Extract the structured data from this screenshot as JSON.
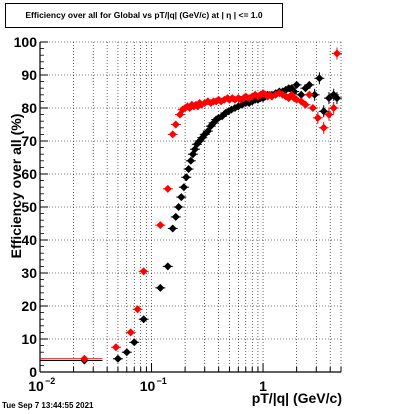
{
  "timestamp": "Tue Sep  7 13:44:55 2021",
  "chart_data": {
    "type": "scatter",
    "title": "Efficiency over all for Global vs pT/|q| (GeV/c) at |  η  | <= 1.0",
    "xlabel": "pT/|q| (GeV/c)",
    "ylabel": "Efficiency over all (%)",
    "xscale": "log",
    "xlim": [
      0.01,
      5.0
    ],
    "ylim": [
      0,
      100
    ],
    "grid": true,
    "x_ticks": [
      {
        "v": 0.01,
        "label": "10",
        "exp": "−2"
      },
      {
        "v": 0.1,
        "label": "10",
        "exp": "−1"
      },
      {
        "v": 1,
        "label": "1",
        "exp": ""
      }
    ],
    "y_ticks": [
      0,
      10,
      20,
      30,
      40,
      50,
      60,
      70,
      80,
      90,
      100
    ],
    "series": [
      {
        "color": "#000000",
        "points": [
          [
            0.025,
            3.5
          ],
          [
            0.05,
            4
          ],
          [
            0.06,
            6
          ],
          [
            0.07,
            9
          ],
          [
            0.085,
            16
          ],
          [
            0.12,
            25.5
          ],
          [
            0.14,
            32
          ],
          [
            0.155,
            43.5
          ],
          [
            0.165,
            47
          ],
          [
            0.175,
            50
          ],
          [
            0.185,
            53
          ],
          [
            0.195,
            56
          ],
          [
            0.205,
            59
          ],
          [
            0.215,
            61.5
          ],
          [
            0.225,
            64
          ],
          [
            0.235,
            66
          ],
          [
            0.245,
            67.5
          ],
          [
            0.255,
            69
          ],
          [
            0.27,
            70
          ],
          [
            0.285,
            71
          ],
          [
            0.3,
            72
          ],
          [
            0.32,
            73
          ],
          [
            0.34,
            74.5
          ],
          [
            0.36,
            75.5
          ],
          [
            0.38,
            76.5
          ],
          [
            0.4,
            77
          ],
          [
            0.43,
            77.5
          ],
          [
            0.46,
            78.5
          ],
          [
            0.49,
            79
          ],
          [
            0.52,
            79.5
          ],
          [
            0.56,
            80
          ],
          [
            0.6,
            80.5
          ],
          [
            0.65,
            81
          ],
          [
            0.7,
            81.5
          ],
          [
            0.75,
            81.5
          ],
          [
            0.8,
            82
          ],
          [
            0.85,
            82.5
          ],
          [
            0.9,
            82.5
          ],
          [
            0.95,
            83
          ],
          [
            1.0,
            83
          ],
          [
            1.05,
            83.5
          ],
          [
            1.1,
            84
          ],
          [
            1.2,
            84
          ],
          [
            1.3,
            84.5
          ],
          [
            1.4,
            85
          ],
          [
            1.5,
            85
          ],
          [
            1.6,
            85.5
          ],
          [
            1.7,
            86
          ],
          [
            1.8,
            86
          ],
          [
            1.9,
            85
          ],
          [
            2.0,
            87
          ],
          [
            2.2,
            84
          ],
          [
            2.4,
            86
          ],
          [
            2.6,
            87
          ],
          [
            2.9,
            84
          ],
          [
            3.2,
            89
          ],
          [
            3.5,
            79
          ],
          [
            3.9,
            83
          ],
          [
            4.3,
            84
          ],
          [
            4.6,
            83
          ]
        ]
      },
      {
        "color": "#ff0000",
        "points": [
          [
            0.025,
            4
          ],
          [
            0.048,
            7.5
          ],
          [
            0.065,
            12
          ],
          [
            0.075,
            19
          ],
          [
            0.085,
            30.5
          ],
          [
            0.12,
            44.5
          ],
          [
            0.14,
            55.5
          ],
          [
            0.155,
            72
          ],
          [
            0.165,
            75
          ],
          [
            0.18,
            78
          ],
          [
            0.19,
            79.5
          ],
          [
            0.2,
            80
          ],
          [
            0.21,
            80.5
          ],
          [
            0.22,
            80
          ],
          [
            0.23,
            81
          ],
          [
            0.24,
            80.5
          ],
          [
            0.25,
            81
          ],
          [
            0.26,
            80.5
          ],
          [
            0.27,
            81.5
          ],
          [
            0.28,
            81
          ],
          [
            0.3,
            81.5
          ],
          [
            0.32,
            82
          ],
          [
            0.34,
            81.5
          ],
          [
            0.36,
            82
          ],
          [
            0.38,
            82
          ],
          [
            0.4,
            82.5
          ],
          [
            0.42,
            82
          ],
          [
            0.45,
            82.5
          ],
          [
            0.48,
            83
          ],
          [
            0.5,
            82.5
          ],
          [
            0.53,
            83
          ],
          [
            0.56,
            82.5
          ],
          [
            0.6,
            83
          ],
          [
            0.63,
            82.5
          ],
          [
            0.67,
            83
          ],
          [
            0.7,
            83.5
          ],
          [
            0.75,
            83
          ],
          [
            0.8,
            83.5
          ],
          [
            0.85,
            84
          ],
          [
            0.9,
            83.5
          ],
          [
            0.95,
            84
          ],
          [
            1.0,
            84.5
          ],
          [
            1.05,
            84
          ],
          [
            1.1,
            83.5
          ],
          [
            1.15,
            84
          ],
          [
            1.2,
            83.5
          ],
          [
            1.3,
            84
          ],
          [
            1.4,
            84.5
          ],
          [
            1.5,
            84
          ],
          [
            1.6,
            83.5
          ],
          [
            1.7,
            83
          ],
          [
            1.8,
            84
          ],
          [
            1.9,
            83
          ],
          [
            2.0,
            82.5
          ],
          [
            2.2,
            82
          ],
          [
            2.4,
            81
          ],
          [
            2.6,
            84
          ],
          [
            2.8,
            80
          ],
          [
            3.1,
            77
          ],
          [
            3.5,
            74
          ],
          [
            3.9,
            78
          ],
          [
            4.3,
            80
          ],
          [
            4.6,
            96.5
          ]
        ]
      }
    ]
  }
}
